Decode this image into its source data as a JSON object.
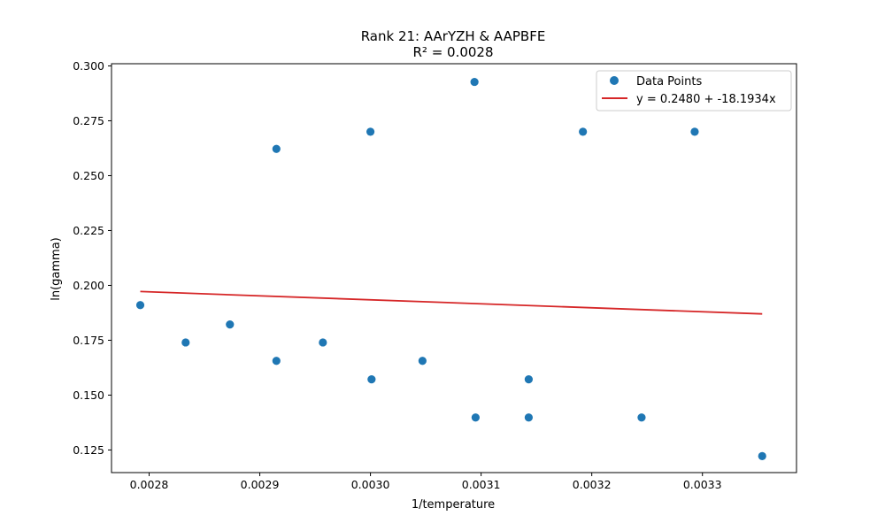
{
  "chart_data": {
    "type": "scatter",
    "title": "Rank 21: AArYZH & AAPBFE",
    "subtitle": "R² = 0.0028",
    "xlabel": "1/temperature",
    "ylabel": "ln(gamma)",
    "xlim": [
      0.002766,
      0.003385
    ],
    "ylim": [
      0.1147,
      0.301
    ],
    "x_ticks": [
      0.0028,
      0.0029,
      0.003,
      0.0031,
      0.0032,
      0.0033
    ],
    "x_tick_labels": [
      "0.0028",
      "0.0029",
      "0.0030",
      "0.0031",
      "0.0032",
      "0.0033"
    ],
    "y_ticks": [
      0.125,
      0.15,
      0.175,
      0.2,
      0.225,
      0.25,
      0.275,
      0.3
    ],
    "y_tick_labels": [
      "0.125",
      "0.150",
      "0.175",
      "0.200",
      "0.225",
      "0.250",
      "0.275",
      "0.300"
    ],
    "grid": false,
    "legend_position": "top-right",
    "series": [
      {
        "name": "Data Points",
        "kind": "scatter",
        "color": "#1f77b4",
        "x": [
          0.002792,
          0.002833,
          0.002873,
          0.002915,
          0.002915,
          0.002957,
          0.003,
          0.003001,
          0.003047,
          0.003094,
          0.003095,
          0.003143,
          0.003143,
          0.003192,
          0.003245,
          0.003293,
          0.003354
        ],
        "y": [
          0.191,
          0.174,
          0.1822,
          0.2622,
          0.1656,
          0.174,
          0.27,
          0.1572,
          0.1656,
          0.2927,
          0.1398,
          0.1572,
          0.1398,
          0.27,
          0.1398,
          0.27,
          0.1222
        ]
      },
      {
        "name": "y = 0.2480 + -18.1934x",
        "kind": "line",
        "color": "#d62728",
        "x": [
          0.002792,
          0.003354
        ],
        "y": [
          0.1972,
          0.187
        ]
      }
    ]
  }
}
